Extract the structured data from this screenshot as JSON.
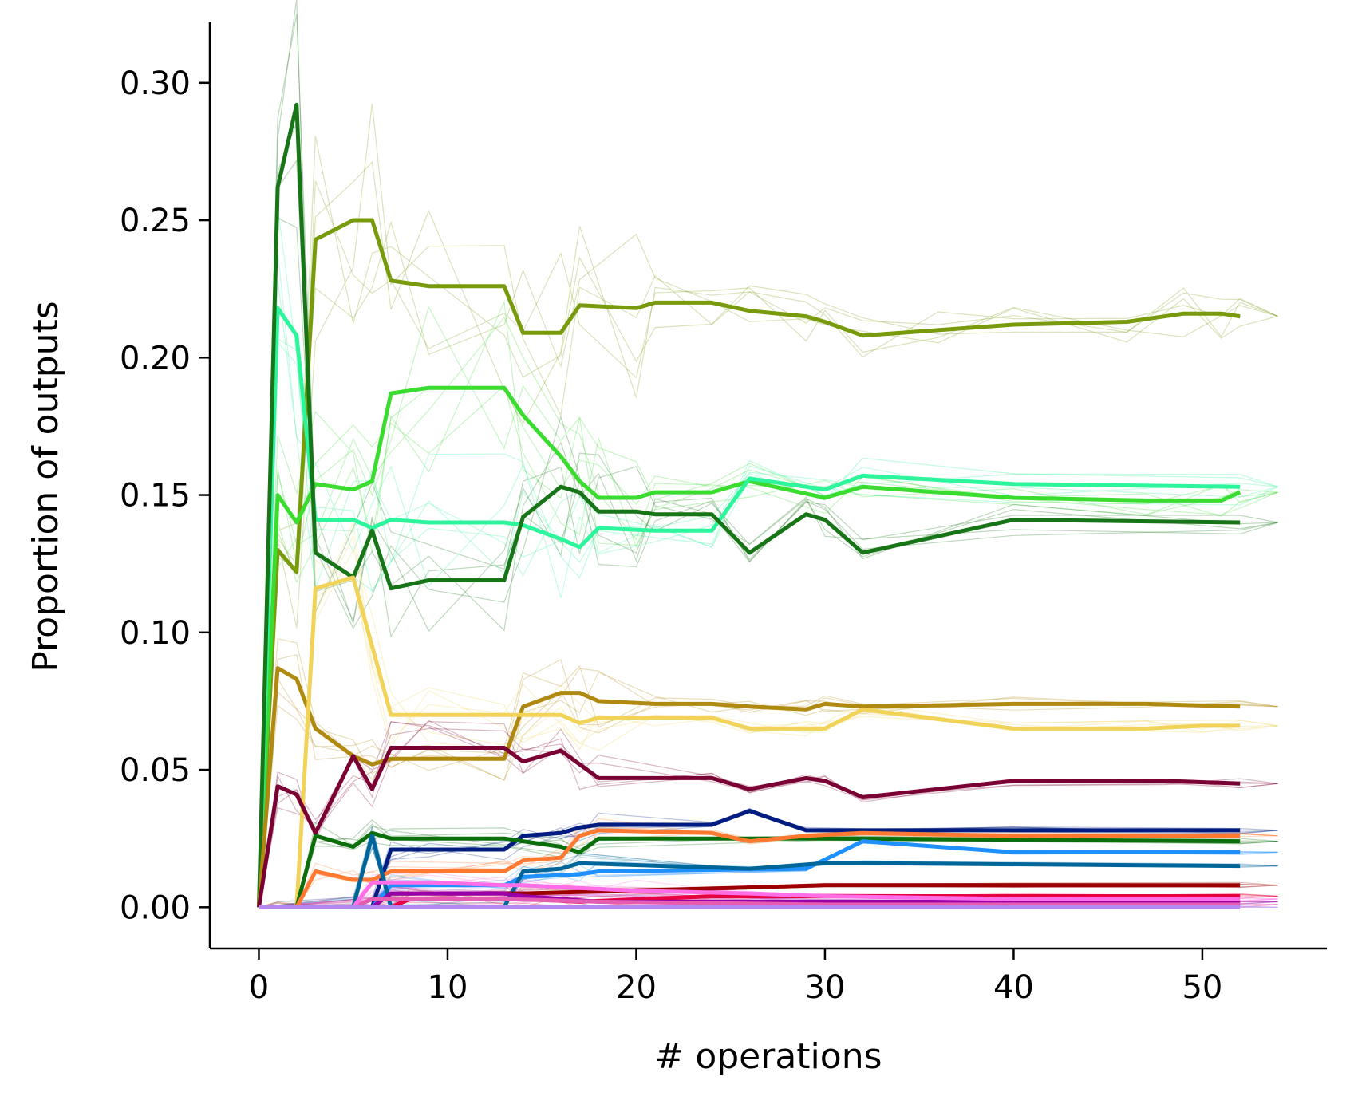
{
  "chart_data": {
    "type": "line",
    "title": "",
    "xlabel": "# operations",
    "ylabel": "Proportion of outputs",
    "xlim": [
      -2.6,
      56.6
    ],
    "ylim": [
      -0.015,
      0.322
    ],
    "xticks": [
      "0",
      "10",
      "20",
      "30",
      "40",
      "50"
    ],
    "yticks": [
      "0.00",
      "0.05",
      "0.10",
      "0.15",
      "0.20",
      "0.25",
      "0.30"
    ],
    "grid": false,
    "legend": "none",
    "series": [
      {
        "color": "#789b0e",
        "width": 5,
        "points": [
          [
            0,
            0
          ],
          [
            1,
            0.13
          ],
          [
            2,
            0.122
          ],
          [
            3,
            0.243
          ],
          [
            5,
            0.25
          ],
          [
            6,
            0.25
          ],
          [
            7,
            0.228
          ],
          [
            9,
            0.226
          ],
          [
            13,
            0.226
          ],
          [
            14,
            0.209
          ],
          [
            16,
            0.209
          ],
          [
            17,
            0.219
          ],
          [
            20,
            0.218
          ],
          [
            21,
            0.22
          ],
          [
            24,
            0.22
          ],
          [
            26,
            0.217
          ],
          [
            29,
            0.215
          ],
          [
            30,
            0.213
          ],
          [
            32,
            0.208
          ],
          [
            36,
            0.21
          ],
          [
            40,
            0.212
          ],
          [
            46,
            0.213
          ],
          [
            49,
            0.216
          ],
          [
            51,
            0.216
          ],
          [
            52,
            0.215
          ]
        ]
      },
      {
        "color": "#3adc2f",
        "width": 5,
        "points": [
          [
            0,
            0
          ],
          [
            1,
            0.15
          ],
          [
            2,
            0.14
          ],
          [
            3,
            0.154
          ],
          [
            5,
            0.152
          ],
          [
            6,
            0.155
          ],
          [
            7,
            0.187
          ],
          [
            9,
            0.189
          ],
          [
            13,
            0.189
          ],
          [
            14,
            0.179
          ],
          [
            16,
            0.164
          ],
          [
            17,
            0.155
          ],
          [
            18,
            0.149
          ],
          [
            20,
            0.149
          ],
          [
            21,
            0.151
          ],
          [
            24,
            0.151
          ],
          [
            26,
            0.155
          ],
          [
            30,
            0.149
          ],
          [
            32,
            0.153
          ],
          [
            40,
            0.149
          ],
          [
            47,
            0.148
          ],
          [
            51,
            0.148
          ],
          [
            52,
            0.151
          ]
        ]
      },
      {
        "color": "#2cf59c",
        "width": 5,
        "points": [
          [
            0,
            0
          ],
          [
            1,
            0.218
          ],
          [
            2,
            0.208
          ],
          [
            3,
            0.141
          ],
          [
            5,
            0.141
          ],
          [
            6,
            0.138
          ],
          [
            7,
            0.141
          ],
          [
            9,
            0.14
          ],
          [
            13,
            0.14
          ],
          [
            14,
            0.139
          ],
          [
            16,
            0.134
          ],
          [
            17,
            0.131
          ],
          [
            18,
            0.138
          ],
          [
            21,
            0.137
          ],
          [
            24,
            0.137
          ],
          [
            26,
            0.156
          ],
          [
            30,
            0.152
          ],
          [
            32,
            0.157
          ],
          [
            40,
            0.154
          ],
          [
            52,
            0.153
          ]
        ]
      },
      {
        "color": "#177417",
        "width": 5,
        "points": [
          [
            0,
            0
          ],
          [
            1,
            0.262
          ],
          [
            2,
            0.292
          ],
          [
            3,
            0.129
          ],
          [
            5,
            0.12
          ],
          [
            6,
            0.137
          ],
          [
            7,
            0.116
          ],
          [
            9,
            0.119
          ],
          [
            13,
            0.119
          ],
          [
            14,
            0.142
          ],
          [
            16,
            0.153
          ],
          [
            17,
            0.151
          ],
          [
            18,
            0.144
          ],
          [
            20,
            0.144
          ],
          [
            21,
            0.143
          ],
          [
            24,
            0.143
          ],
          [
            26,
            0.129
          ],
          [
            29,
            0.143
          ],
          [
            30,
            0.141
          ],
          [
            32,
            0.129
          ],
          [
            40,
            0.141
          ],
          [
            52,
            0.14
          ]
        ]
      },
      {
        "color": "#b08a10",
        "width": 5,
        "points": [
          [
            0,
            0
          ],
          [
            1,
            0.087
          ],
          [
            2,
            0.083
          ],
          [
            3,
            0.065
          ],
          [
            5,
            0.055
          ],
          [
            6,
            0.052
          ],
          [
            7,
            0.054
          ],
          [
            9,
            0.054
          ],
          [
            13,
            0.054
          ],
          [
            14,
            0.073
          ],
          [
            16,
            0.078
          ],
          [
            17,
            0.078
          ],
          [
            18,
            0.075
          ],
          [
            21,
            0.074
          ],
          [
            24,
            0.074
          ],
          [
            26,
            0.073
          ],
          [
            29,
            0.072
          ],
          [
            30,
            0.074
          ],
          [
            32,
            0.073
          ],
          [
            40,
            0.074
          ],
          [
            47,
            0.074
          ],
          [
            52,
            0.073
          ]
        ]
      },
      {
        "color": "#f0d358",
        "width": 5,
        "points": [
          [
            0,
            0
          ],
          [
            1,
            0
          ],
          [
            2,
            0
          ],
          [
            3,
            0.116
          ],
          [
            5,
            0.12
          ],
          [
            6,
            0.095
          ],
          [
            7,
            0.07
          ],
          [
            9,
            0.07
          ],
          [
            13,
            0.07
          ],
          [
            14,
            0.07
          ],
          [
            16,
            0.07
          ],
          [
            17,
            0.067
          ],
          [
            18,
            0.069
          ],
          [
            21,
            0.069
          ],
          [
            24,
            0.069
          ],
          [
            26,
            0.065
          ],
          [
            29,
            0.065
          ],
          [
            30,
            0.065
          ],
          [
            32,
            0.072
          ],
          [
            40,
            0.065
          ],
          [
            47,
            0.065
          ],
          [
            50,
            0.066
          ],
          [
            52,
            0.066
          ]
        ]
      },
      {
        "color": "#7a0033",
        "width": 5,
        "points": [
          [
            0,
            0
          ],
          [
            1,
            0.044
          ],
          [
            2,
            0.041
          ],
          [
            3,
            0.027
          ],
          [
            5,
            0.055
          ],
          [
            6,
            0.043
          ],
          [
            7,
            0.058
          ],
          [
            9,
            0.058
          ],
          [
            13,
            0.058
          ],
          [
            14,
            0.053
          ],
          [
            16,
            0.057
          ],
          [
            17,
            0.052
          ],
          [
            18,
            0.047
          ],
          [
            24,
            0.047
          ],
          [
            26,
            0.043
          ],
          [
            29,
            0.047
          ],
          [
            30,
            0.046
          ],
          [
            32,
            0.04
          ],
          [
            40,
            0.046
          ],
          [
            48,
            0.046
          ],
          [
            52,
            0.045
          ]
        ]
      },
      {
        "color": "#001c80",
        "width": 5,
        "points": [
          [
            0,
            0
          ],
          [
            1,
            0
          ],
          [
            5,
            0
          ],
          [
            6,
            0
          ],
          [
            7,
            0.021
          ],
          [
            9,
            0.021
          ],
          [
            13,
            0.021
          ],
          [
            14,
            0.026
          ],
          [
            16,
            0.027
          ],
          [
            17,
            0.029
          ],
          [
            18,
            0.03
          ],
          [
            24,
            0.03
          ],
          [
            26,
            0.035
          ],
          [
            29,
            0.028
          ],
          [
            40,
            0.028
          ],
          [
            52,
            0.028
          ]
        ]
      },
      {
        "color": "#0a6e0a",
        "width": 5,
        "points": [
          [
            0,
            0
          ],
          [
            1,
            0
          ],
          [
            2,
            0
          ],
          [
            3,
            0.026
          ],
          [
            5,
            0.022
          ],
          [
            6,
            0.027
          ],
          [
            7,
            0.025
          ],
          [
            13,
            0.025
          ],
          [
            16,
            0.022
          ],
          [
            17,
            0.02
          ],
          [
            18,
            0.025
          ],
          [
            30,
            0.025
          ],
          [
            52,
            0.024
          ]
        ]
      },
      {
        "color": "#ff7a30",
        "width": 5,
        "points": [
          [
            0,
            0
          ],
          [
            1,
            0
          ],
          [
            2,
            0
          ],
          [
            3,
            0.013
          ],
          [
            5,
            0.01
          ],
          [
            6,
            0.01
          ],
          [
            7,
            0.013
          ],
          [
            13,
            0.013
          ],
          [
            14,
            0.017
          ],
          [
            16,
            0.018
          ],
          [
            17,
            0.026
          ],
          [
            18,
            0.028
          ],
          [
            24,
            0.027
          ],
          [
            26,
            0.024
          ],
          [
            29,
            0.026
          ],
          [
            32,
            0.027
          ],
          [
            40,
            0.026
          ],
          [
            52,
            0.026
          ]
        ]
      },
      {
        "color": "#1e90ff",
        "width": 5,
        "points": [
          [
            0,
            0
          ],
          [
            6,
            0
          ],
          [
            7,
            0.008
          ],
          [
            13,
            0.008
          ],
          [
            14,
            0.011
          ],
          [
            17,
            0.012
          ],
          [
            18,
            0.013
          ],
          [
            29,
            0.014
          ],
          [
            32,
            0.024
          ],
          [
            40,
            0.02
          ],
          [
            52,
            0.02
          ]
        ]
      },
      {
        "color": "#006699",
        "width": 5,
        "points": [
          [
            0,
            0
          ],
          [
            5,
            0
          ],
          [
            6,
            0.026
          ],
          [
            7,
            0
          ],
          [
            8,
            0
          ],
          [
            13,
            0
          ],
          [
            14,
            0.013
          ],
          [
            16,
            0.014
          ],
          [
            17,
            0.016
          ],
          [
            26,
            0.014
          ],
          [
            30,
            0.016
          ],
          [
            32,
            0.016
          ],
          [
            52,
            0.015
          ]
        ]
      },
      {
        "color": "#9c0000",
        "width": 5,
        "points": [
          [
            0,
            0
          ],
          [
            6,
            0
          ],
          [
            7,
            0.005
          ],
          [
            13,
            0.005
          ],
          [
            14,
            0.005
          ],
          [
            25,
            0.007
          ],
          [
            30,
            0.008
          ],
          [
            40,
            0.008
          ],
          [
            52,
            0.008
          ]
        ]
      },
      {
        "color": "#e60042",
        "width": 5,
        "points": [
          [
            0,
            0
          ],
          [
            7,
            0
          ],
          [
            8,
            0.003
          ],
          [
            14,
            0.003
          ],
          [
            17,
            0.002
          ],
          [
            24,
            0.004
          ],
          [
            30,
            0.004
          ],
          [
            40,
            0.004
          ],
          [
            52,
            0.004
          ]
        ]
      },
      {
        "color": "#9a00a8",
        "width": 5,
        "points": [
          [
            0,
            0
          ],
          [
            6,
            0
          ],
          [
            7,
            0.005
          ],
          [
            13,
            0.005
          ],
          [
            14,
            0.004
          ],
          [
            18,
            0.002
          ],
          [
            30,
            0.002
          ],
          [
            52,
            0.002
          ]
        ]
      },
      {
        "color": "#e65cb0",
        "width": 5,
        "points": [
          [
            0,
            0
          ],
          [
            5,
            0
          ],
          [
            6,
            0.003
          ],
          [
            13,
            0.003
          ],
          [
            18,
            0.002
          ],
          [
            30,
            0.001
          ],
          [
            52,
            0.001
          ]
        ]
      },
      {
        "color": "#ff6ee6",
        "width": 5,
        "points": [
          [
            0,
            0
          ],
          [
            5,
            0
          ],
          [
            6,
            0.009
          ],
          [
            9,
            0.009
          ],
          [
            13,
            0.008
          ],
          [
            14,
            0.008
          ],
          [
            17,
            0.007
          ],
          [
            20,
            0.006
          ],
          [
            26,
            0.005
          ],
          [
            30,
            0.004
          ],
          [
            40,
            0.003
          ],
          [
            52,
            0.003
          ]
        ]
      },
      {
        "color": "#b388f0",
        "width": 5,
        "points": [
          [
            0,
            0
          ],
          [
            52,
            0
          ]
        ]
      }
    ]
  }
}
